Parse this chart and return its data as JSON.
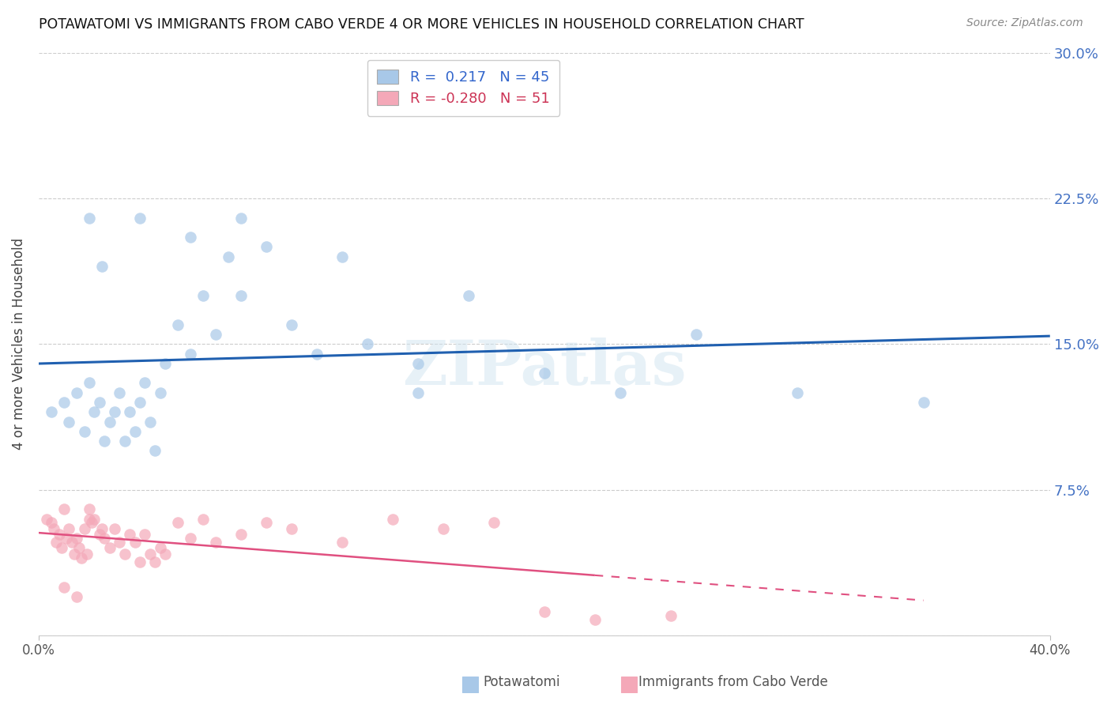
{
  "title": "POTAWATOMI VS IMMIGRANTS FROM CABO VERDE 4 OR MORE VEHICLES IN HOUSEHOLD CORRELATION CHART",
  "source": "Source: ZipAtlas.com",
  "ylabel": "4 or more Vehicles in Household",
  "ytick_values": [
    0.0,
    0.075,
    0.15,
    0.225,
    0.3
  ],
  "xlim": [
    0.0,
    0.4
  ],
  "ylim": [
    0.0,
    0.3
  ],
  "blue_R": 0.217,
  "blue_N": 45,
  "pink_R": -0.28,
  "pink_N": 51,
  "legend1_label": "Potawatomi",
  "legend2_label": "Immigrants from Cabo Verde",
  "blue_color": "#a8c8e8",
  "pink_color": "#f4a8b8",
  "blue_line_color": "#2060b0",
  "pink_line_color": "#e05080",
  "watermark": "ZIPatlas",
  "blue_scatter_x": [
    0.005,
    0.01,
    0.012,
    0.015,
    0.018,
    0.02,
    0.022,
    0.024,
    0.026,
    0.028,
    0.03,
    0.032,
    0.034,
    0.036,
    0.038,
    0.04,
    0.042,
    0.044,
    0.046,
    0.048,
    0.05,
    0.055,
    0.06,
    0.065,
    0.07,
    0.075,
    0.08,
    0.09,
    0.1,
    0.11,
    0.12,
    0.13,
    0.15,
    0.17,
    0.2,
    0.23,
    0.26,
    0.3,
    0.35,
    0.02,
    0.025,
    0.04,
    0.06,
    0.08,
    0.15
  ],
  "blue_scatter_y": [
    0.115,
    0.12,
    0.11,
    0.125,
    0.105,
    0.13,
    0.115,
    0.12,
    0.1,
    0.11,
    0.115,
    0.125,
    0.1,
    0.115,
    0.105,
    0.12,
    0.13,
    0.11,
    0.095,
    0.125,
    0.14,
    0.16,
    0.145,
    0.175,
    0.155,
    0.195,
    0.175,
    0.2,
    0.16,
    0.145,
    0.195,
    0.15,
    0.14,
    0.175,
    0.135,
    0.125,
    0.155,
    0.125,
    0.12,
    0.215,
    0.19,
    0.215,
    0.205,
    0.215,
    0.125
  ],
  "pink_scatter_x": [
    0.003,
    0.005,
    0.006,
    0.007,
    0.008,
    0.009,
    0.01,
    0.011,
    0.012,
    0.013,
    0.014,
    0.015,
    0.016,
    0.017,
    0.018,
    0.019,
    0.02,
    0.021,
    0.022,
    0.024,
    0.026,
    0.028,
    0.03,
    0.032,
    0.034,
    0.036,
    0.038,
    0.04,
    0.042,
    0.044,
    0.046,
    0.048,
    0.05,
    0.055,
    0.06,
    0.065,
    0.07,
    0.08,
    0.09,
    0.1,
    0.12,
    0.14,
    0.16,
    0.18,
    0.2,
    0.22,
    0.25,
    0.01,
    0.015,
    0.02,
    0.025
  ],
  "pink_scatter_y": [
    0.06,
    0.058,
    0.055,
    0.048,
    0.052,
    0.045,
    0.065,
    0.05,
    0.055,
    0.048,
    0.042,
    0.05,
    0.045,
    0.04,
    0.055,
    0.042,
    0.065,
    0.058,
    0.06,
    0.052,
    0.05,
    0.045,
    0.055,
    0.048,
    0.042,
    0.052,
    0.048,
    0.038,
    0.052,
    0.042,
    0.038,
    0.045,
    0.042,
    0.058,
    0.05,
    0.06,
    0.048,
    0.052,
    0.058,
    0.055,
    0.048,
    0.06,
    0.055,
    0.058,
    0.012,
    0.008,
    0.01,
    0.025,
    0.02,
    0.06,
    0.055
  ],
  "pink_line_solid_end": 0.22,
  "pink_line_dash_end": 0.35
}
